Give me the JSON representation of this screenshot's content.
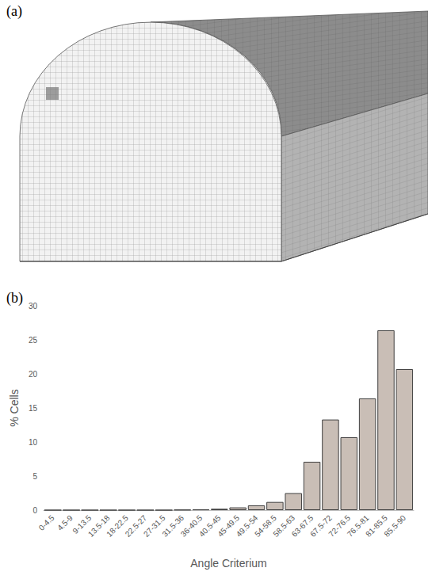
{
  "panels": [
    "(a)",
    "(b)"
  ],
  "chart_data": {
    "type": "bar",
    "x_label": "Angle Criterium",
    "y_label": "% Cells",
    "categories": [
      "0-4.5",
      "4.5-9",
      "9-13.5",
      "13.5-18",
      "18-22.5",
      "22.5-27",
      "27-31.5",
      "31.5-36",
      "36-40.5",
      "40.5-45",
      "45-49.5",
      "49.5-54",
      "54-58.5",
      "58.5-63",
      "63-67.5",
      "67.5-72",
      "72-76.5",
      "76.5-81",
      "81-85.5",
      "85.5-90"
    ],
    "values": [
      0,
      0,
      0,
      0,
      0,
      0,
      0,
      0.05,
      0.1,
      0.2,
      0.4,
      0.7,
      1.2,
      2.5,
      7.1,
      13.3,
      10.7,
      16.4,
      26.4,
      20.7
    ],
    "color": "#c9beb6",
    "ylim": [
      0,
      30
    ],
    "yticks": [
      0,
      5,
      10,
      15,
      20,
      25,
      30
    ],
    "grid": false
  }
}
